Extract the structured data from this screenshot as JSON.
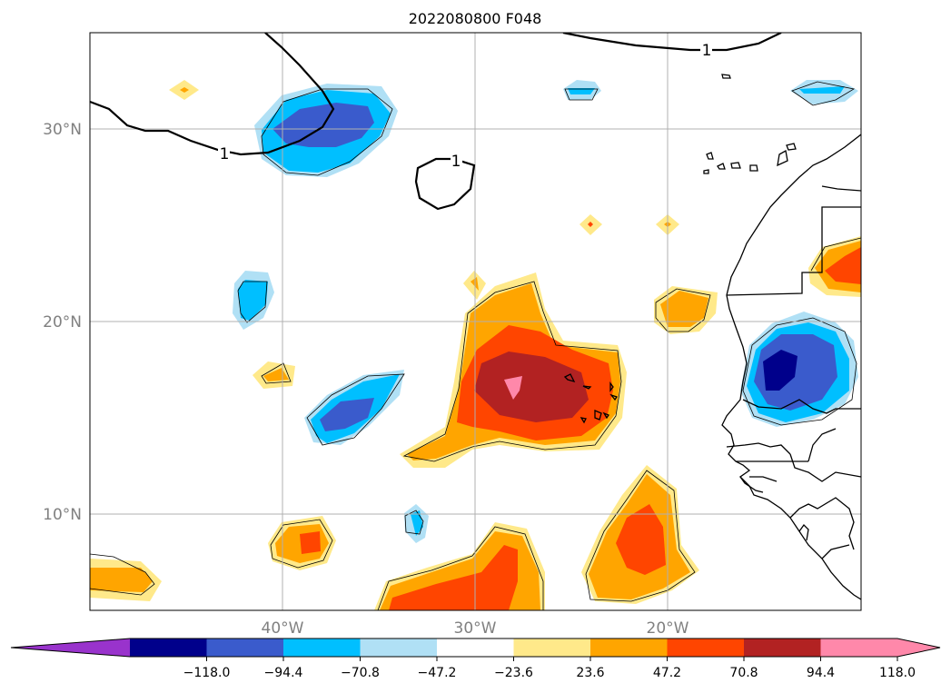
{
  "title": "2022080800 F048",
  "map": {
    "projection": "PlateCarree",
    "lon_range": [
      -50,
      -10
    ],
    "lat_range": [
      5,
      35
    ],
    "lat_ticks": [
      {
        "value": 30,
        "label": "30°N"
      },
      {
        "value": 20,
        "label": "20°N"
      },
      {
        "value": 10,
        "label": "10°N"
      }
    ],
    "lon_ticks": [
      {
        "value": -40,
        "label": "40°W"
      },
      {
        "value": -30,
        "label": "30°W"
      },
      {
        "value": -20,
        "label": "20°W"
      }
    ],
    "gridlines": true,
    "contour_line_label": "1",
    "contour_labels": [
      "1",
      "1",
      "1"
    ]
  },
  "colorbar": {
    "orientation": "horizontal",
    "extend": "both",
    "colors": [
      "#9933cc",
      "#00008b",
      "#3a5bcc",
      "#00bfff",
      "#b0e0f5",
      "#ffffff",
      "#ffe98a",
      "#ffa500",
      "#ff4500",
      "#b22222",
      "#ff88aa",
      "#ff88aa"
    ],
    "ticks": [
      "−118.0",
      "−94.4",
      "−70.8",
      "−47.2",
      "−23.6",
      "23.6",
      "47.2",
      "70.8",
      "94.4",
      "118.0"
    ]
  },
  "colors": {
    "neg_strong": "#00008b",
    "neg_2": "#3a5bcc",
    "neg_3": "#00bfff",
    "neg_4": "#b0e0f5",
    "pos_1": "#ffe98a",
    "pos_2": "#ffa500",
    "pos_3": "#ff4500",
    "pos_4": "#b22222",
    "pos_5": "#ff88aa"
  }
}
